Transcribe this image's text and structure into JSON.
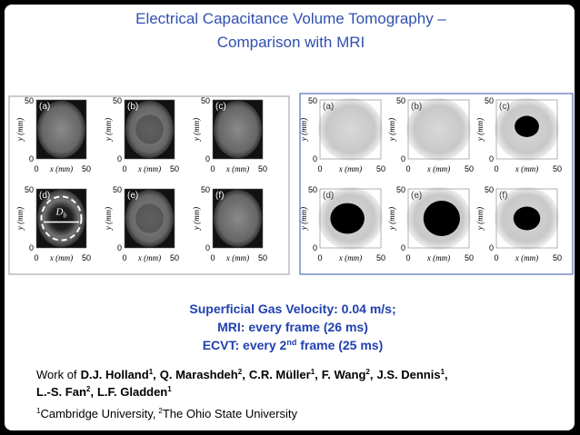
{
  "title": [
    "Electrical Capacitance Volume Tomography –",
    "Comparison with MRI"
  ],
  "axes": {
    "x_label": "x (mm)",
    "y_label": "y (mm)",
    "ticks": [
      0,
      50
    ]
  },
  "mri_panels": [
    "(a)",
    "(b)",
    "(c)",
    "(d)",
    "(e)",
    "(f)"
  ],
  "ecvt_panels": [
    "(a)",
    "(b)",
    "(c)",
    "(d)",
    "(e)",
    "(f)"
  ],
  "bubble_label": {
    "text": "D",
    "sub": "b"
  },
  "conditions": [
    {
      "text": "Superficial Gas Velocity: 0.04 m/s;"
    },
    {
      "text": "MRI: every frame (26 ms)"
    },
    {
      "text": "ECVT: every 2",
      "sup": "nd",
      "after": " frame (25 ms)"
    }
  ],
  "credits": {
    "prefix": "Work of",
    "separator": ",",
    "author_lines": [
      [
        {
          "name": "D.J. Holland",
          "sup": "1"
        },
        {
          "name": "Q. Marashdeh",
          "sup": "2"
        },
        {
          "name": "C.R. Müller",
          "sup": "1"
        },
        {
          "name": "F. Wang",
          "sup": "2"
        },
        {
          "name": "J.S. Dennis",
          "sup": "1"
        }
      ],
      [
        {
          "name": "L.-S. Fan",
          "sup": "2"
        },
        {
          "name": "L.F. Gladden",
          "sup": "1"
        }
      ]
    ],
    "affiliations": [
      {
        "sup": "1",
        "name": "Cambridge University"
      },
      {
        "sup": "2",
        "name": "The Ohio State University"
      }
    ]
  }
}
